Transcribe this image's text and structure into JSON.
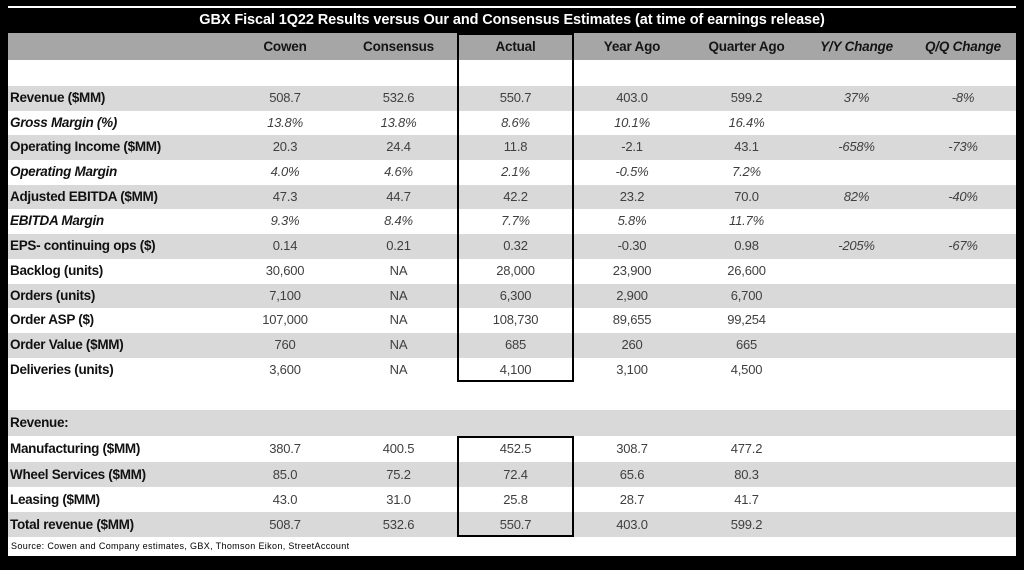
{
  "chart_data": {
    "type": "table",
    "title": "GBX Fiscal 1Q22 Results versus Our and Consensus Estimates (at time of earnings release)",
    "columns": [
      "",
      "Cowen",
      "Consensus",
      "Actual",
      "Year Ago",
      "Quarter Ago",
      "Y/Y Change",
      "Q/Q Change"
    ],
    "main_rows": [
      {
        "label": "Revenue ($MM)",
        "italic": false,
        "cells": [
          "508.7",
          "532.6",
          "550.7",
          "403.0",
          "599.2",
          "37%",
          "-8%"
        ]
      },
      {
        "label": "Gross Margin (%)",
        "italic": true,
        "cells": [
          "13.8%",
          "13.8%",
          "8.6%",
          "10.1%",
          "16.4%",
          "",
          ""
        ]
      },
      {
        "label": "Operating Income ($MM)",
        "italic": false,
        "cells": [
          "20.3",
          "24.4",
          "11.8",
          "-2.1",
          "43.1",
          "-658%",
          "-73%"
        ]
      },
      {
        "label": "Operating Margin",
        "italic": true,
        "cells": [
          "4.0%",
          "4.6%",
          "2.1%",
          "-0.5%",
          "7.2%",
          "",
          ""
        ]
      },
      {
        "label": "Adjusted EBITDA ($MM)",
        "italic": false,
        "cells": [
          "47.3",
          "44.7",
          "42.2",
          "23.2",
          "70.0",
          "82%",
          "-40%"
        ]
      },
      {
        "label": "EBITDA Margin",
        "italic": true,
        "cells": [
          "9.3%",
          "8.4%",
          "7.7%",
          "5.8%",
          "11.7%",
          "",
          ""
        ]
      },
      {
        "label": "EPS- continuing ops ($)",
        "italic": false,
        "cells": [
          "0.14",
          "0.21",
          "0.32",
          "-0.30",
          "0.98",
          "-205%",
          "-67%"
        ]
      },
      {
        "label": "Backlog (units)",
        "italic": false,
        "cells": [
          "30,600",
          "NA",
          "28,000",
          "23,900",
          "26,600",
          "",
          ""
        ]
      },
      {
        "label": "Orders (units)",
        "italic": false,
        "cells": [
          "7,100",
          "NA",
          "6,300",
          "2,900",
          "6,700",
          "",
          ""
        ]
      },
      {
        "label": "Order ASP ($)",
        "italic": false,
        "cells": [
          "107,000",
          "NA",
          "108,730",
          "89,655",
          "99,254",
          "",
          ""
        ]
      },
      {
        "label": "Order Value ($MM)",
        "italic": false,
        "cells": [
          "760",
          "NA",
          "685",
          "260",
          "665",
          "",
          ""
        ]
      },
      {
        "label": "Deliveries (units)",
        "italic": false,
        "cells": [
          "3,600",
          "NA",
          "4,100",
          "3,100",
          "4,500",
          "",
          ""
        ]
      }
    ],
    "revenue_section_label": "Revenue:",
    "revenue_rows": [
      {
        "label": "Manufacturing ($MM)",
        "italic": false,
        "cells": [
          "380.7",
          "400.5",
          "452.5",
          "308.7",
          "477.2",
          "",
          ""
        ]
      },
      {
        "label": "Wheel Services ($MM)",
        "italic": false,
        "cells": [
          "85.0",
          "75.2",
          "72.4",
          "65.6",
          "80.3",
          "",
          ""
        ]
      },
      {
        "label": "Leasing ($MM)",
        "italic": false,
        "cells": [
          "43.0",
          "31.0",
          "25.8",
          "28.7",
          "41.7",
          "",
          ""
        ]
      },
      {
        "label": "Total revenue ($MM)",
        "italic": false,
        "cells": [
          "508.7",
          "532.6",
          "550.7",
          "403.0",
          "599.2",
          "",
          ""
        ]
      }
    ],
    "source": "Source: Cowen and Company estimates, GBX, Thomson Eikon, StreetAccount"
  },
  "colors": {
    "frame": "#000000",
    "title_bg": "#000000",
    "title_text": "#ffffff",
    "header_bg": "#a6a6a6",
    "row_gray": "#d9d9d9",
    "row_white": "#ffffff",
    "value_text": "#3f3f3f",
    "label_text": "#111111",
    "box_border": "#000000"
  }
}
